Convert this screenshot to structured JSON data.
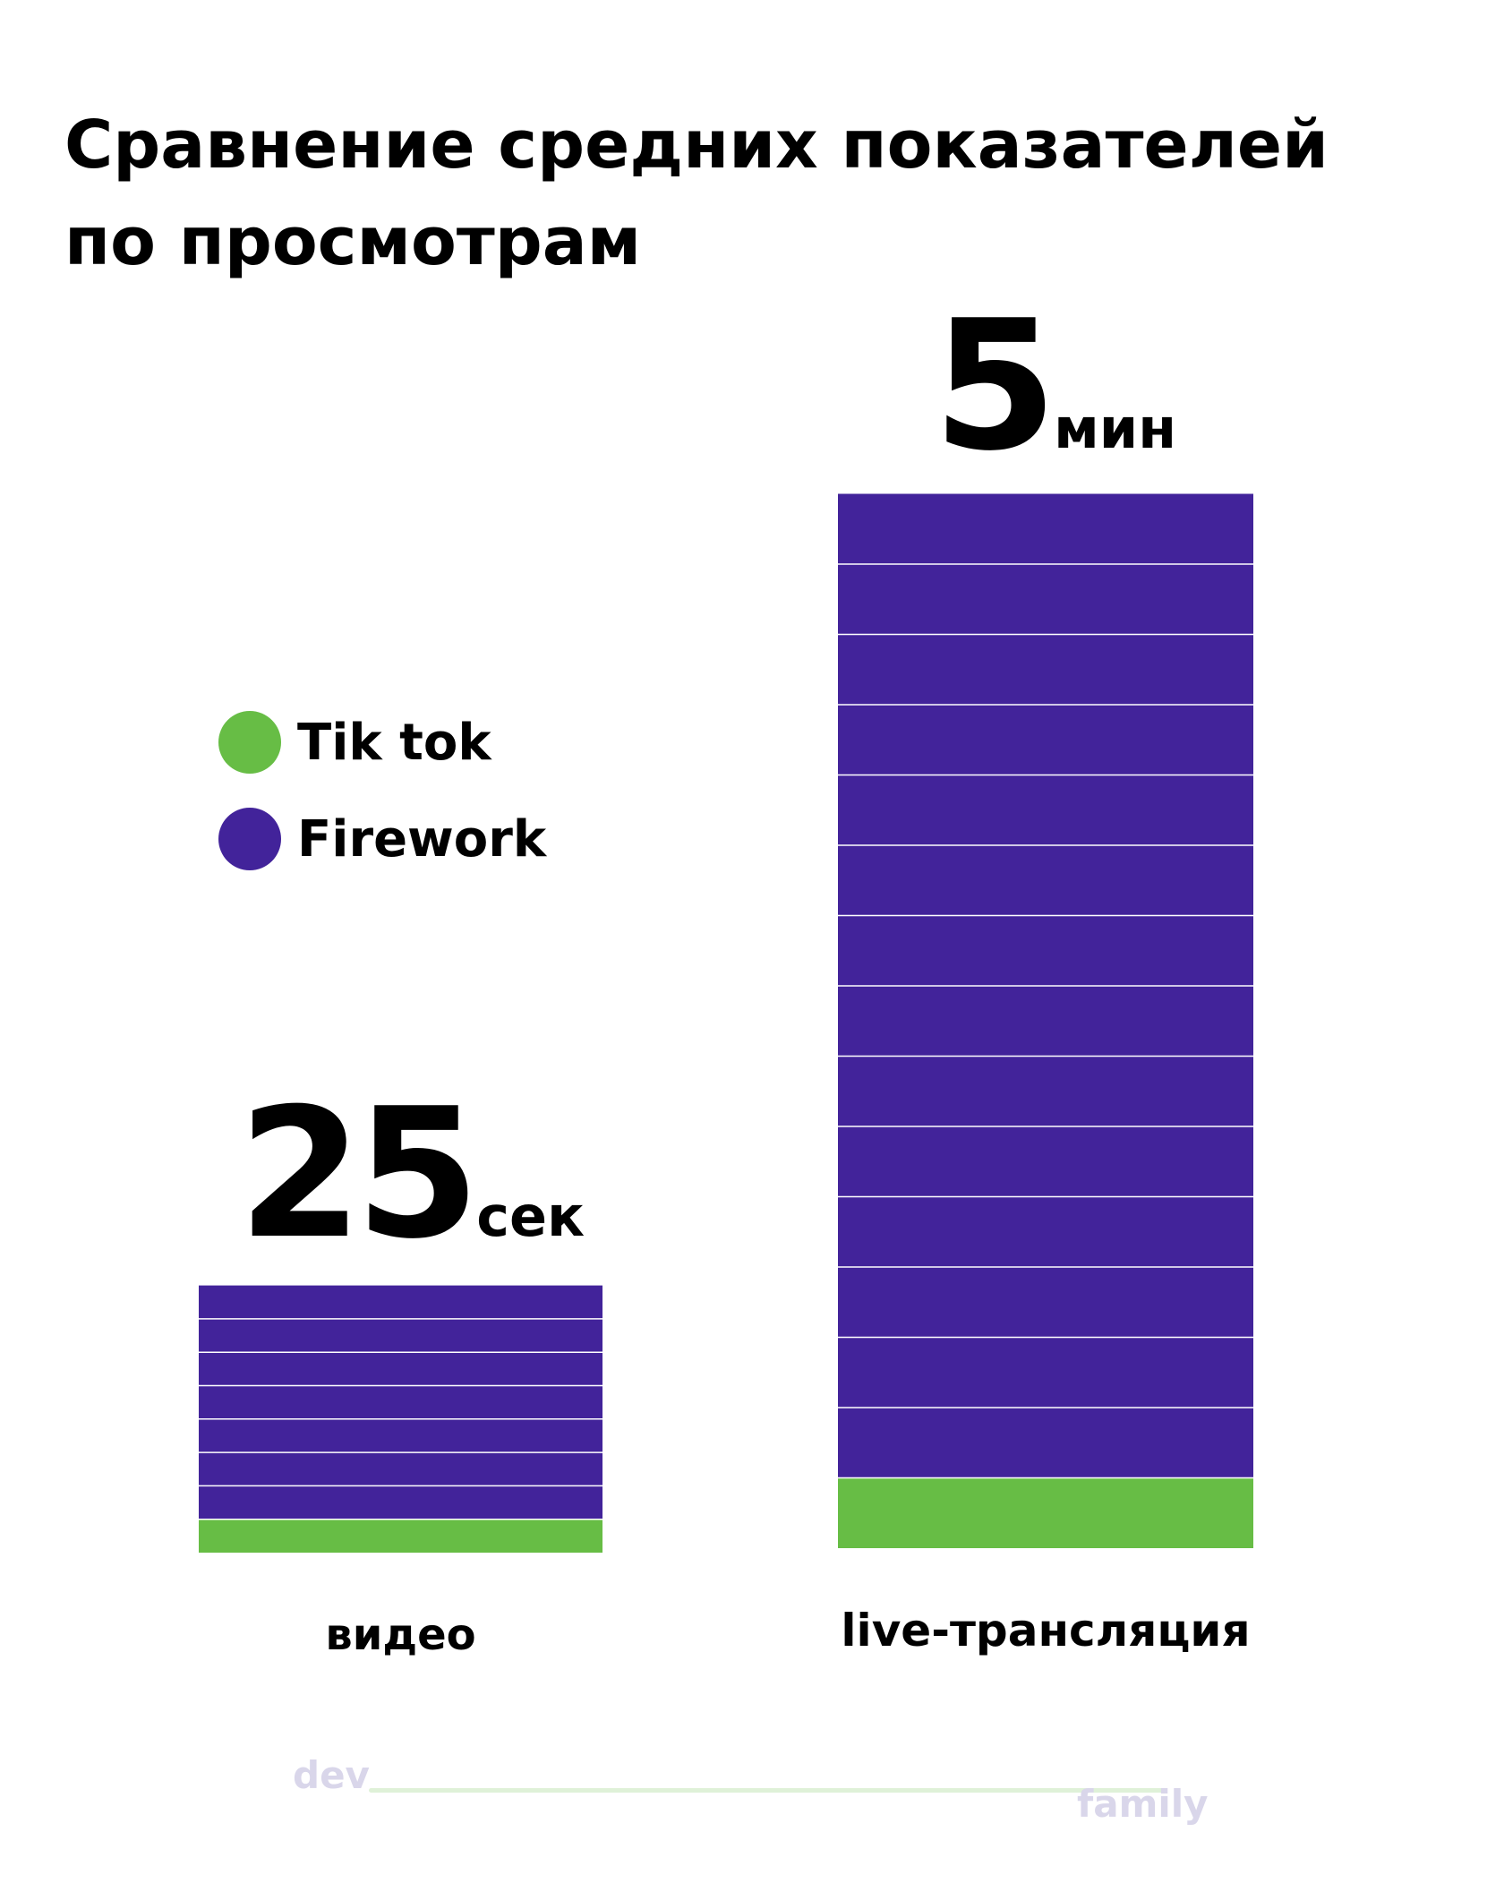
{
  "title_lines": [
    "Сравнение средних показателей",
    "по просмотрам"
  ],
  "legend": [
    {
      "label": "Tik tok",
      "color": "#67bd45"
    },
    {
      "label": "Firework",
      "color": "#42239a"
    }
  ],
  "chart_data": {
    "type": "bar",
    "stacked": true,
    "categories": [
      "видео",
      "live-трансляция"
    ],
    "series": [
      {
        "name": "Tik tok",
        "color": "#67bd45",
        "values": [
          1,
          1
        ]
      },
      {
        "name": "Firework",
        "color": "#42239a",
        "values": [
          7,
          14
        ]
      }
    ],
    "value_labels": [
      {
        "number": "25",
        "unit": "сек"
      },
      {
        "number": "5",
        "unit": "мин"
      }
    ],
    "grid": false,
    "legend_position": "left"
  },
  "logo": {
    "dev": "dev",
    "family": "family"
  }
}
